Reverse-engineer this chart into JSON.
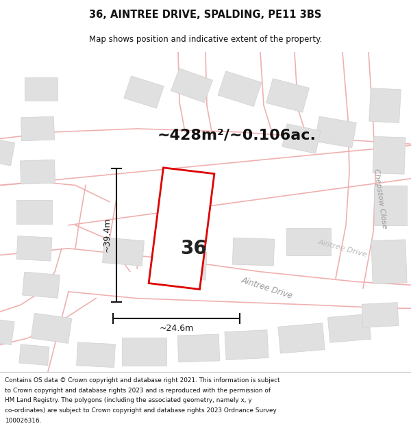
{
  "title": "36, AINTREE DRIVE, SPALDING, PE11 3BS",
  "subtitle": "Map shows position and indicative extent of the property.",
  "area_text": "~428m²/~0.106ac.",
  "width_label": "~24.6m",
  "height_label": "~39.4m",
  "property_number": "36",
  "footer_lines": [
    "Contains OS data © Crown copyright and database right 2021. This information is subject",
    "to Crown copyright and database rights 2023 and is reproduced with the permission of",
    "HM Land Registry. The polygons (including the associated geometry, namely x, y",
    "co-ordinates) are subject to Crown copyright and database rights 2023 Ordnance Survey",
    "100026316."
  ],
  "map_bg": "#ffffff",
  "road_outline_color": "#f0b0b0",
  "building_fill": "#e0e0e0",
  "building_edge": "#cccccc",
  "prop_fill": "#ffffff",
  "prop_edge": "#dd0000",
  "dim_color": "#111111",
  "street_label_color": "#999999",
  "title_color": "#111111"
}
